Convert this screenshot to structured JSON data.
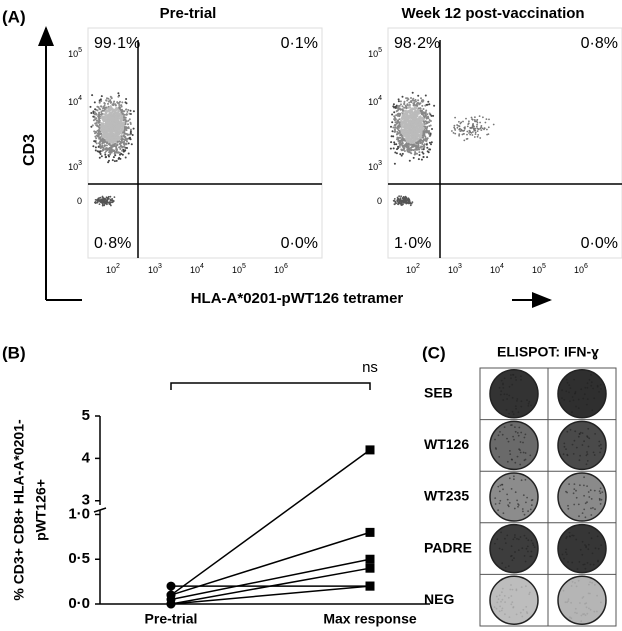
{
  "panel_a": {
    "label": "(A)",
    "y_label": "CD3",
    "x_label": "HLA-A*0201-pWT126 tetramer",
    "y_ticks": [
      {
        "base": "10",
        "exp": "5"
      },
      {
        "base": "10",
        "exp": "4"
      },
      {
        "base": "10",
        "exp": "3"
      },
      {
        "base": "0"
      }
    ],
    "x_ticks": [
      {
        "base": "10",
        "exp": "2"
      },
      {
        "base": "10",
        "exp": "3"
      },
      {
        "base": "10",
        "exp": "4"
      },
      {
        "base": "10",
        "exp": "5"
      },
      {
        "base": "10",
        "exp": "6"
      }
    ],
    "plots": [
      {
        "title": "Pre-trial",
        "quadrants": {
          "upper_left": "99·1%",
          "upper_right": "0·1%",
          "lower_left": "0·8%",
          "lower_right": "0·0%"
        }
      },
      {
        "title": "Week 12 post-vaccination",
        "quadrants": {
          "upper_left": "98·2%",
          "upper_right": "0·8%",
          "lower_left": "1·0%",
          "lower_right": "0·0%"
        }
      }
    ]
  },
  "chart_data": {
    "type": "line",
    "label": "(B)",
    "y_label_lines": [
      "% CD3+ CD8+ HLA-A*0201-",
      "pWT126+"
    ],
    "annotation": "ns",
    "categories": [
      "Pre-trial",
      "Max response"
    ],
    "color": "#000000",
    "y_segments": [
      {
        "ylim": [
          0,
          1.05
        ],
        "yticks": [
          {
            "value": 0,
            "label": "0·0"
          },
          {
            "value": 0.5,
            "label": "0·5"
          },
          {
            "value": 1,
            "label": "1·0"
          }
        ]
      },
      {
        "ylim": [
          2.9,
          5
        ],
        "yticks": [
          3,
          4,
          5
        ]
      }
    ],
    "series": [
      {
        "values": [
          0.1,
          4.2
        ]
      },
      {
        "values": [
          0.1,
          0.8
        ]
      },
      {
        "values": [
          0.05,
          0.5
        ]
      },
      {
        "values": [
          0.0,
          0.4
        ]
      },
      {
        "values": [
          0.2,
          0.2
        ]
      },
      {
        "values": [
          0.0,
          0.2
        ]
      }
    ]
  },
  "panel_c": {
    "label": "(C)",
    "title": "ELISPOT: IFN-ɣ",
    "rows": [
      "SEB",
      "WT126",
      "WT235",
      "PADRE",
      "NEG"
    ]
  }
}
